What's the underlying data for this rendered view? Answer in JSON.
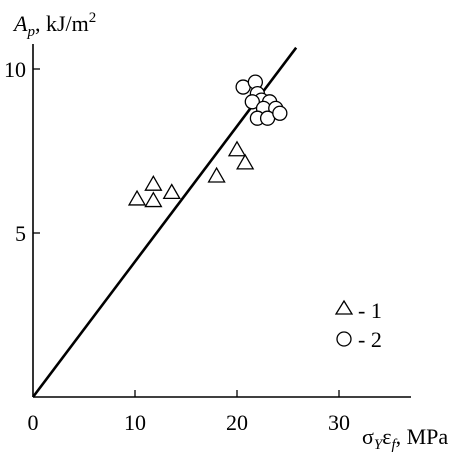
{
  "chart_data": {
    "type": "scatter",
    "title": "",
    "ylabel": {
      "symbol": "A",
      "subscript": "p",
      "unit": ", kJ/m",
      "superscript": "2"
    },
    "xlabel": {
      "symbol1": "σ",
      "sub1": "Y",
      "symbol2": "ε",
      "sub2": "f",
      "unit": ", MPa"
    },
    "xlim": [
      0,
      37
    ],
    "ylim": [
      0,
      10.7
    ],
    "xticks": [
      0,
      10,
      20,
      30
    ],
    "yticks": [
      5,
      10
    ],
    "xtick_labels": [
      "0",
      "10",
      "20",
      "30"
    ],
    "ytick_labels": [
      "5",
      "10"
    ],
    "grid": false,
    "legend_position": "bottom-right",
    "series": [
      {
        "name": "1",
        "marker": "triangle",
        "x": [
          10.2,
          11.8,
          11.8,
          13.6,
          18.0,
          20.0,
          20.8
        ],
        "y": [
          6.05,
          6.5,
          6.0,
          6.25,
          6.75,
          7.55,
          7.15
        ]
      },
      {
        "name": "2",
        "marker": "circle",
        "x": [
          20.6,
          21.8,
          22.0,
          22.4,
          21.5,
          23.2,
          22.6,
          23.8,
          22.0,
          23.0,
          24.2
        ],
        "y": [
          9.45,
          9.6,
          9.25,
          9.05,
          9.0,
          9.0,
          8.8,
          8.8,
          8.5,
          8.5,
          8.65
        ]
      }
    ],
    "fit_line": {
      "x": [
        0,
        25.8
      ],
      "y": [
        0,
        10.65
      ]
    },
    "legend": [
      {
        "marker": "triangle",
        "label": "- 1"
      },
      {
        "marker": "circle",
        "label": "- 2"
      }
    ]
  }
}
